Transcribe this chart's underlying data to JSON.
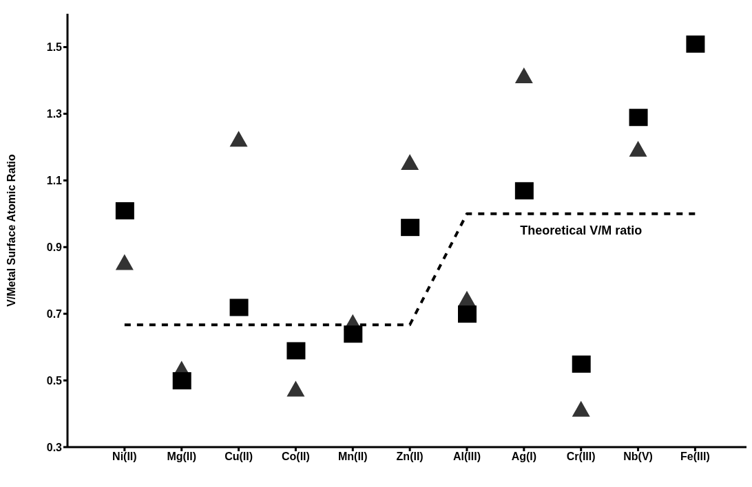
{
  "chart_data": {
    "type": "scatter",
    "ylabel": "V/Metal Surface Atomic Ratio",
    "categories": [
      "Ni(II)",
      "Mg(II)",
      "Cu(II)",
      "Co(II)",
      "Mn(II)",
      "Zn(II)",
      "Al(III)",
      "Ag(I)",
      "Cr(III)",
      "Nb(V)",
      "Fe(III)"
    ],
    "series": [
      {
        "type": "line",
        "color": "#000000",
        "line_style": "dashed",
        "marker": "none",
        "values": [
          0.667,
          0.667,
          0.667,
          0.667,
          0.667,
          0.667,
          1.0,
          1.0,
          1.0,
          1.0,
          1.0
        ]
      },
      {
        "color": "#333333",
        "marker": "triangle",
        "values": [
          0.85,
          0.53,
          1.22,
          0.47,
          0.67,
          1.15,
          0.74,
          1.41,
          0.41,
          1.19,
          null
        ]
      },
      {
        "color": "#000000",
        "marker": "square",
        "values": [
          1.01,
          0.5,
          0.72,
          0.59,
          0.64,
          0.96,
          0.7,
          1.07,
          0.55,
          1.29,
          1.51
        ]
      }
    ],
    "ylim": [
      0.3,
      1.6
    ],
    "yticks": [
      0.3,
      0.5,
      0.7,
      0.9,
      1.1,
      1.3,
      1.5
    ],
    "annotations": [
      {
        "text": "Theoretical V/M ratio",
        "x": "Cr(III)",
        "y": 1.0
      }
    ]
  }
}
